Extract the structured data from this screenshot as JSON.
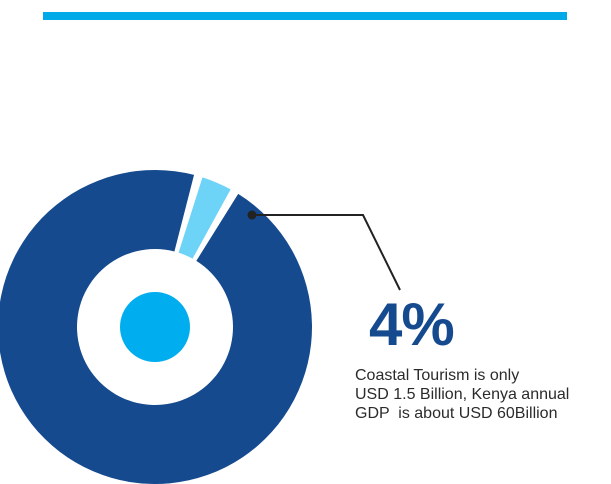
{
  "colors": {
    "top_bar": "#00a9e8",
    "main_slice": "#154a8f",
    "highlight_slice": "#6dd3f7",
    "center_dot": "#00aeef",
    "callout_line": "#222222",
    "percent_text": "#154a8f"
  },
  "callout": {
    "percent": "4%",
    "lines": [
      "Coastal Tourism is only",
      "USD 1.5 Billion, Kenya annual",
      "GDP  is about USD 60Billion"
    ]
  },
  "chart_data": {
    "type": "pie",
    "variant": "donut",
    "slices": [
      {
        "label": "",
        "value": 4,
        "color": "#6dd3f7",
        "highlighted": true
      },
      {
        "label": "",
        "value": 96,
        "color": "#154a8f",
        "highlighted": false
      }
    ],
    "annotations": [
      "4%"
    ],
    "title": "",
    "legend": "none"
  }
}
